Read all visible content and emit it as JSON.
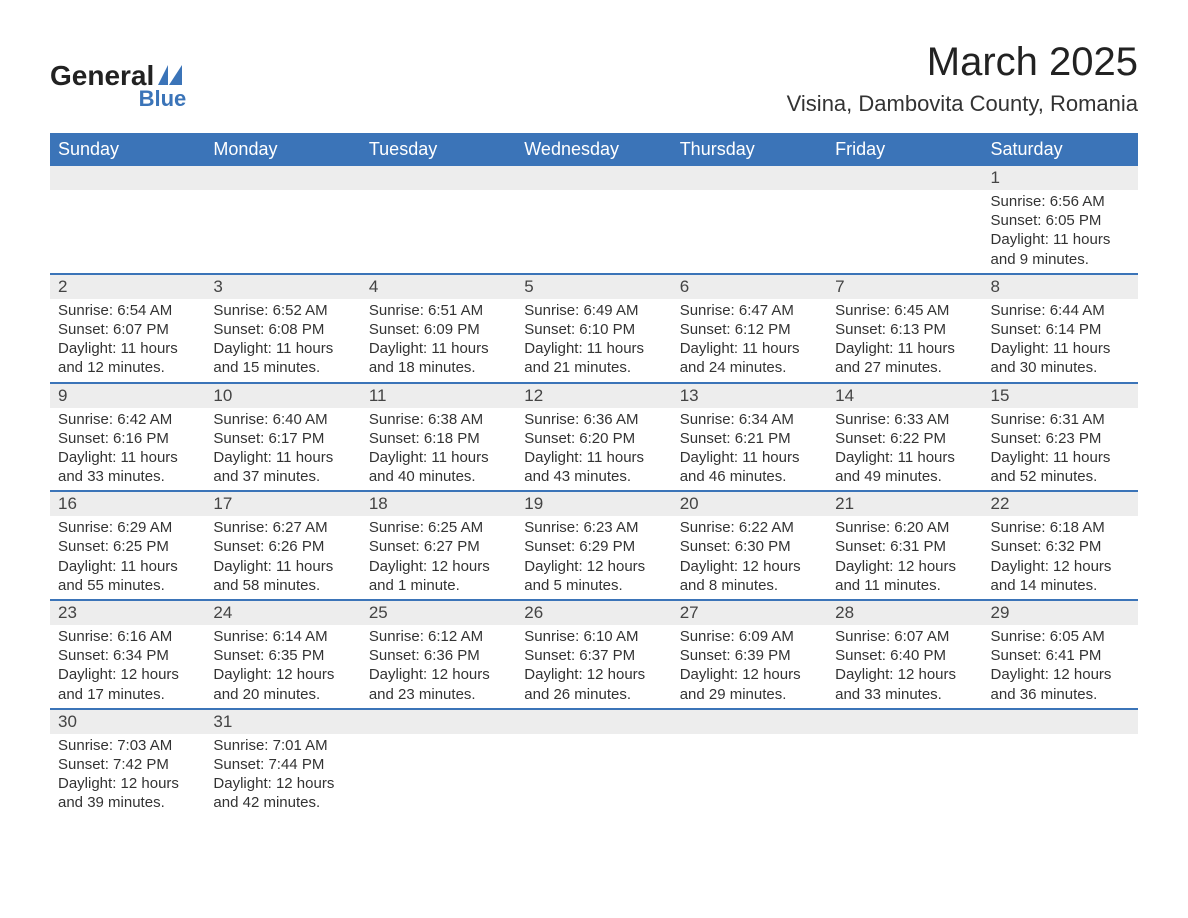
{
  "logo": {
    "general": "General",
    "blue": "Blue",
    "flag_color": "#3b74b8",
    "text_color": "#222222"
  },
  "title": "March 2025",
  "location": "Visina, Dambovita County, Romania",
  "colors": {
    "header_bg": "#3b74b8",
    "header_text": "#ffffff",
    "daynum_bg": "#ededed",
    "border": "#3b74b8",
    "body_text": "#333333",
    "page_bg": "#ffffff"
  },
  "typography": {
    "title_fontsize": 40,
    "location_fontsize": 22,
    "header_fontsize": 18,
    "daynum_fontsize": 17,
    "cell_fontsize": 15
  },
  "weekdays": [
    "Sunday",
    "Monday",
    "Tuesday",
    "Wednesday",
    "Thursday",
    "Friday",
    "Saturday"
  ],
  "labels": {
    "sunrise": "Sunrise:",
    "sunset": "Sunset:",
    "daylight": "Daylight:"
  },
  "weeks": [
    [
      null,
      null,
      null,
      null,
      null,
      null,
      {
        "day": "1",
        "sunrise": "6:56 AM",
        "sunset": "6:05 PM",
        "daylight": "11 hours and 9 minutes."
      }
    ],
    [
      {
        "day": "2",
        "sunrise": "6:54 AM",
        "sunset": "6:07 PM",
        "daylight": "11 hours and 12 minutes."
      },
      {
        "day": "3",
        "sunrise": "6:52 AM",
        "sunset": "6:08 PM",
        "daylight": "11 hours and 15 minutes."
      },
      {
        "day": "4",
        "sunrise": "6:51 AM",
        "sunset": "6:09 PM",
        "daylight": "11 hours and 18 minutes."
      },
      {
        "day": "5",
        "sunrise": "6:49 AM",
        "sunset": "6:10 PM",
        "daylight": "11 hours and 21 minutes."
      },
      {
        "day": "6",
        "sunrise": "6:47 AM",
        "sunset": "6:12 PM",
        "daylight": "11 hours and 24 minutes."
      },
      {
        "day": "7",
        "sunrise": "6:45 AM",
        "sunset": "6:13 PM",
        "daylight": "11 hours and 27 minutes."
      },
      {
        "day": "8",
        "sunrise": "6:44 AM",
        "sunset": "6:14 PM",
        "daylight": "11 hours and 30 minutes."
      }
    ],
    [
      {
        "day": "9",
        "sunrise": "6:42 AM",
        "sunset": "6:16 PM",
        "daylight": "11 hours and 33 minutes."
      },
      {
        "day": "10",
        "sunrise": "6:40 AM",
        "sunset": "6:17 PM",
        "daylight": "11 hours and 37 minutes."
      },
      {
        "day": "11",
        "sunrise": "6:38 AM",
        "sunset": "6:18 PM",
        "daylight": "11 hours and 40 minutes."
      },
      {
        "day": "12",
        "sunrise": "6:36 AM",
        "sunset": "6:20 PM",
        "daylight": "11 hours and 43 minutes."
      },
      {
        "day": "13",
        "sunrise": "6:34 AM",
        "sunset": "6:21 PM",
        "daylight": "11 hours and 46 minutes."
      },
      {
        "day": "14",
        "sunrise": "6:33 AM",
        "sunset": "6:22 PM",
        "daylight": "11 hours and 49 minutes."
      },
      {
        "day": "15",
        "sunrise": "6:31 AM",
        "sunset": "6:23 PM",
        "daylight": "11 hours and 52 minutes."
      }
    ],
    [
      {
        "day": "16",
        "sunrise": "6:29 AM",
        "sunset": "6:25 PM",
        "daylight": "11 hours and 55 minutes."
      },
      {
        "day": "17",
        "sunrise": "6:27 AM",
        "sunset": "6:26 PM",
        "daylight": "11 hours and 58 minutes."
      },
      {
        "day": "18",
        "sunrise": "6:25 AM",
        "sunset": "6:27 PM",
        "daylight": "12 hours and 1 minute."
      },
      {
        "day": "19",
        "sunrise": "6:23 AM",
        "sunset": "6:29 PM",
        "daylight": "12 hours and 5 minutes."
      },
      {
        "day": "20",
        "sunrise": "6:22 AM",
        "sunset": "6:30 PM",
        "daylight": "12 hours and 8 minutes."
      },
      {
        "day": "21",
        "sunrise": "6:20 AM",
        "sunset": "6:31 PM",
        "daylight": "12 hours and 11 minutes."
      },
      {
        "day": "22",
        "sunrise": "6:18 AM",
        "sunset": "6:32 PM",
        "daylight": "12 hours and 14 minutes."
      }
    ],
    [
      {
        "day": "23",
        "sunrise": "6:16 AM",
        "sunset": "6:34 PM",
        "daylight": "12 hours and 17 minutes."
      },
      {
        "day": "24",
        "sunrise": "6:14 AM",
        "sunset": "6:35 PM",
        "daylight": "12 hours and 20 minutes."
      },
      {
        "day": "25",
        "sunrise": "6:12 AM",
        "sunset": "6:36 PM",
        "daylight": "12 hours and 23 minutes."
      },
      {
        "day": "26",
        "sunrise": "6:10 AM",
        "sunset": "6:37 PM",
        "daylight": "12 hours and 26 minutes."
      },
      {
        "day": "27",
        "sunrise": "6:09 AM",
        "sunset": "6:39 PM",
        "daylight": "12 hours and 29 minutes."
      },
      {
        "day": "28",
        "sunrise": "6:07 AM",
        "sunset": "6:40 PM",
        "daylight": "12 hours and 33 minutes."
      },
      {
        "day": "29",
        "sunrise": "6:05 AM",
        "sunset": "6:41 PM",
        "daylight": "12 hours and 36 minutes."
      }
    ],
    [
      {
        "day": "30",
        "sunrise": "7:03 AM",
        "sunset": "7:42 PM",
        "daylight": "12 hours and 39 minutes."
      },
      {
        "day": "31",
        "sunrise": "7:01 AM",
        "sunset": "7:44 PM",
        "daylight": "12 hours and 42 minutes."
      },
      null,
      null,
      null,
      null,
      null
    ]
  ]
}
